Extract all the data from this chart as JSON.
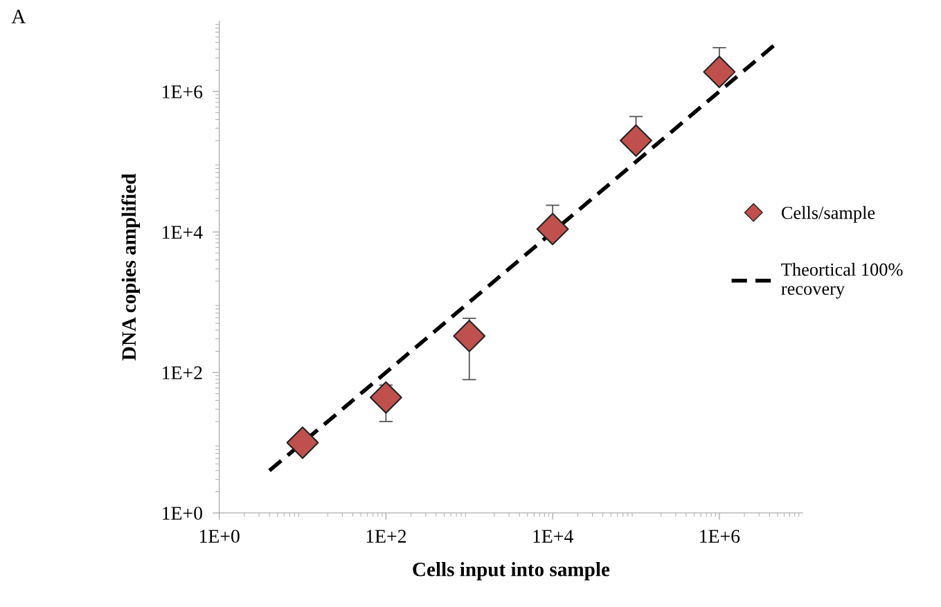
{
  "chart_data": {
    "type": "scatter",
    "xlabel": "Cells input into sample",
    "ylabel": "DNA copies amplified",
    "annotations": [
      "A"
    ],
    "log": "xy",
    "xlim": [
      1,
      10000000
    ],
    "ylim": [
      1,
      10000000
    ],
    "xticks": [
      {
        "value": 1,
        "label": "1E+0"
      },
      {
        "value": 100,
        "label": "1E+2"
      },
      {
        "value": 10000,
        "label": "1E+4"
      },
      {
        "value": 1000000,
        "label": "1E+6"
      }
    ],
    "yticks": [
      {
        "value": 1,
        "label": "1E+0"
      },
      {
        "value": 100,
        "label": "1E+2"
      },
      {
        "value": 10000,
        "label": "1E+4"
      },
      {
        "value": 1000000,
        "label": "1E+6"
      }
    ],
    "grid": false,
    "legend": "right",
    "marker": "diamond",
    "series": [
      {
        "name": "Cells/sample",
        "type": "scatter",
        "color": "#c0504d",
        "x": [
          10,
          100,
          1000,
          10000,
          100000,
          1000000
        ],
        "values": [
          10,
          44,
          330,
          11000,
          200000,
          1900000
        ],
        "errors": [
          null,
          [
            20,
            66
          ],
          [
            79,
            590
          ],
          [
            11000,
            24000
          ],
          [
            200000,
            440000
          ],
          [
            1900000,
            4200000
          ]
        ]
      },
      {
        "name": "Theortical 100% recovery",
        "type": "line",
        "color": "#000000",
        "line_style": "dashed",
        "marker": "none",
        "x": [
          4,
          4500000
        ],
        "values": [
          4,
          4500000
        ]
      }
    ]
  }
}
